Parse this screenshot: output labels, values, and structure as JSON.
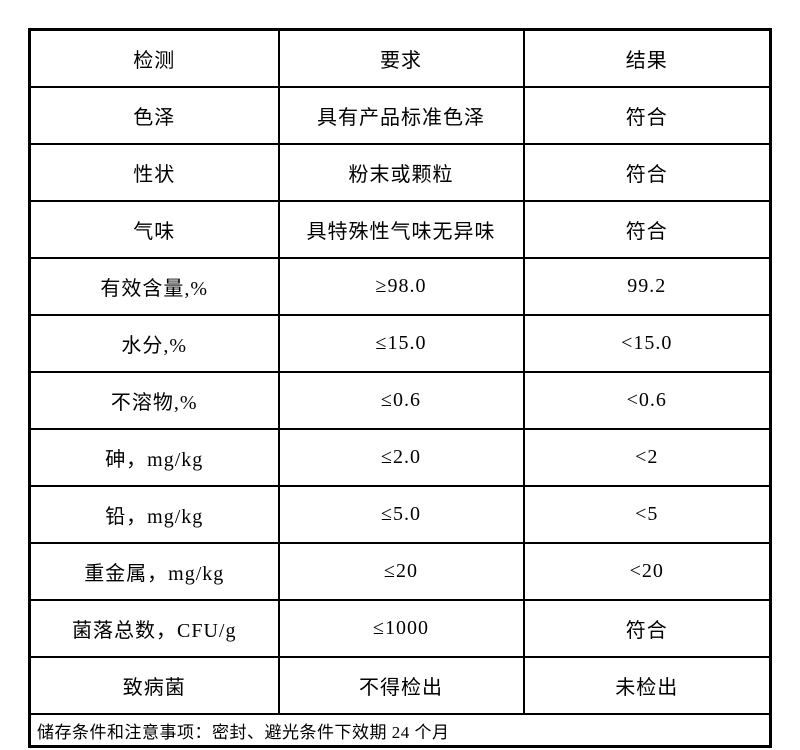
{
  "table": {
    "headers": [
      "检测",
      "要求",
      "结果"
    ],
    "rows": [
      [
        "色泽",
        "具有产品标准色泽",
        "符合"
      ],
      [
        "性状",
        "粉末或颗粒",
        "符合"
      ],
      [
        "气味",
        "具特殊性气味无异味",
        "符合"
      ],
      [
        "有效含量,%",
        "≥98.0",
        "99.2"
      ],
      [
        "水分,%",
        "≤15.0",
        "<15.0"
      ],
      [
        "不溶物,%",
        "≤0.6",
        "<0.6"
      ],
      [
        "砷，mg/kg",
        "≤2.0",
        "<2"
      ],
      [
        "铅，mg/kg",
        "≤5.0",
        "<5"
      ],
      [
        "重金属，mg/kg",
        "≤20",
        "<20"
      ],
      [
        "菌落总数，CFU/g",
        "≤1000",
        "符合"
      ],
      [
        "致病菌",
        "不得检出",
        "未检出"
      ]
    ],
    "footer": "储存条件和注意事项：密封、避光条件下效期 24 个月"
  },
  "colors": {
    "border": "#000000",
    "text": "#000000",
    "background": "#ffffff"
  }
}
